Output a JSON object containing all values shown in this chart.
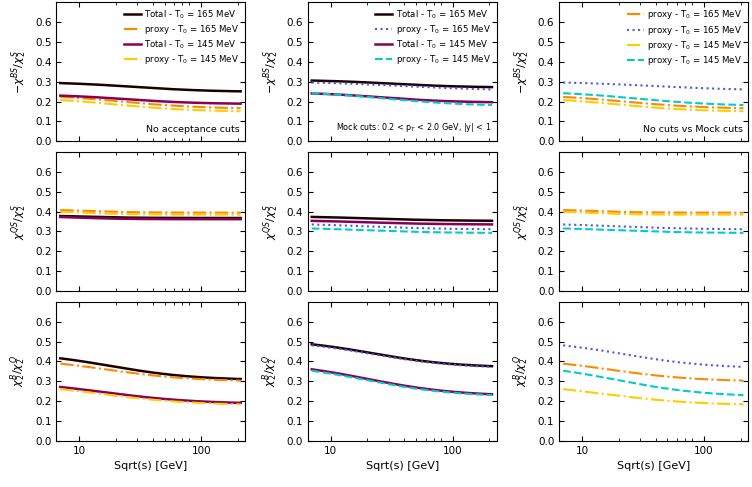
{
  "col_total_165": "#1a0000",
  "col_proxy_165_od": "#ff8800",
  "col_proxy_165_dot": "#5555dd",
  "col_total_145": "#880055",
  "col_proxy_145_od": "#ffcc00",
  "col_proxy_145_dash": "#00cccc",
  "annotation_col0": "No acceptance cuts",
  "annotation_col1": "Mock cuts: 0.2 < p$_T$ < 2.0 GeV, |y| < 1",
  "annotation_col2": "No cuts vs Mock cuts",
  "xlabel": "Sqrt(s) [GeV]",
  "ylabel_row0": "$-\\chi^{BS}/\\chi_2^S$",
  "ylabel_row1": "$\\chi^{QS}/\\chi_2^S$",
  "ylabel_row2": "$\\chi_2^{B}/\\chi_2^Q$",
  "ylim": [
    0,
    0.7
  ],
  "yticks": [
    0,
    0.1,
    0.2,
    0.3,
    0.4,
    0.5,
    0.6
  ],
  "xlim": [
    6.5,
    230
  ],
  "figsize": [
    7.52,
    4.87
  ],
  "dpi": 100
}
